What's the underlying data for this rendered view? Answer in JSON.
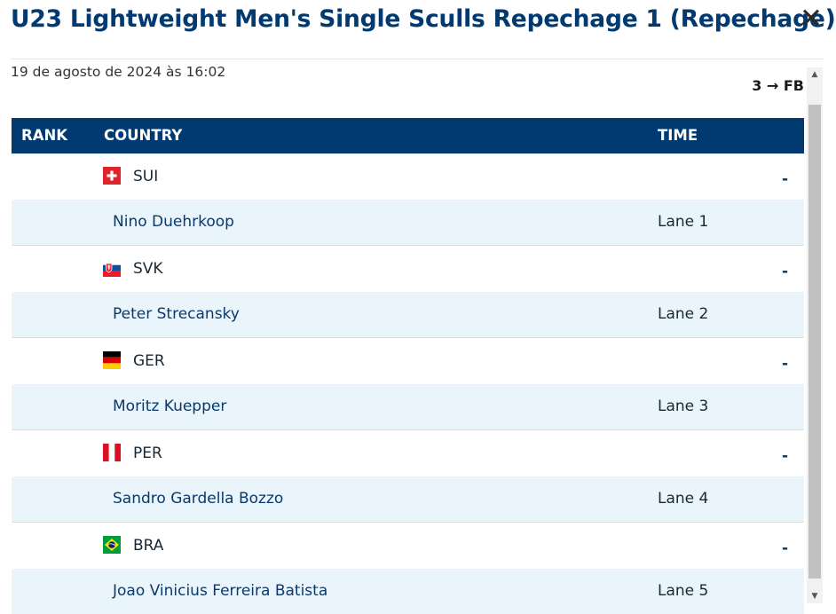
{
  "header": {
    "title": "U23 Lightweight Men's Single Sculls Repechage 1 (Repechage)",
    "close_glyph": "✕",
    "date": "19 de agosto de 2024 às 16:02",
    "qualification": "3 → FB"
  },
  "table": {
    "columns": {
      "rank": "RANK",
      "country": "COUNTRY",
      "time": "TIME"
    },
    "rows": [
      {
        "country": "SUI",
        "flag": "flag-switzerland-icon",
        "time": "-",
        "athlete": "Nino Duehrkoop",
        "lane": "Lane 1"
      },
      {
        "country": "SVK",
        "flag": "flag-slovakia-icon",
        "time": "-",
        "athlete": "Peter Strecansky",
        "lane": "Lane 2"
      },
      {
        "country": "GER",
        "flag": "flag-germany-icon",
        "time": "-",
        "athlete": "Moritz Kuepper",
        "lane": "Lane 3"
      },
      {
        "country": "PER",
        "flag": "flag-peru-icon",
        "time": "-",
        "athlete": "Sandro Gardella Bozzo",
        "lane": "Lane 4"
      },
      {
        "country": "BRA",
        "flag": "flag-brazil-icon",
        "time": "-",
        "athlete": "Joao Vinicius Ferreira Batista",
        "lane": "Lane 5"
      }
    ]
  },
  "colors": {
    "header_bg": "#003a70",
    "athlete_row_bg": "#eaf4fb",
    "title": "#003a70"
  }
}
